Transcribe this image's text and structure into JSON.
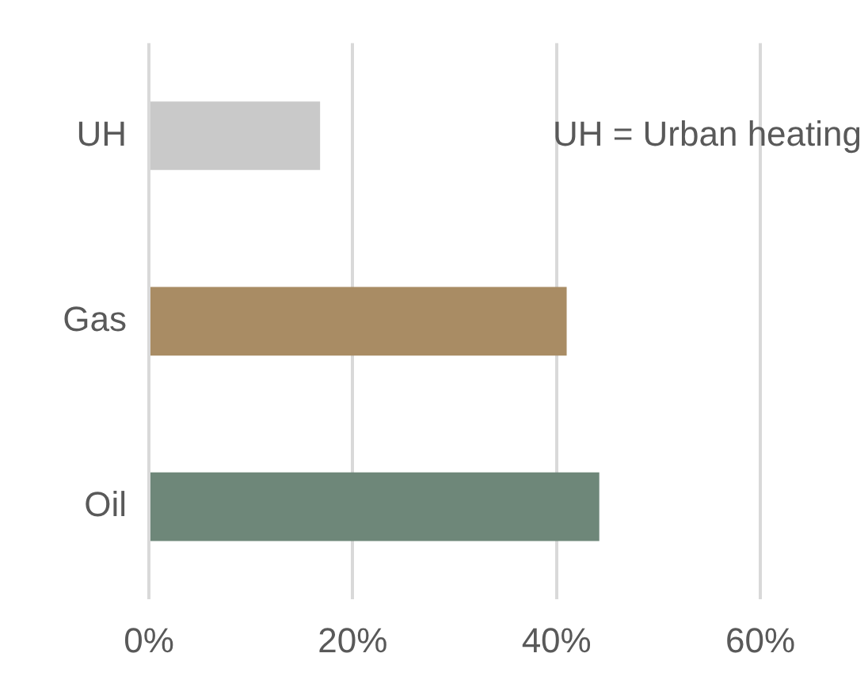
{
  "chart_data": {
    "type": "bar",
    "orientation": "horizontal",
    "categories": [
      "UH",
      "Gas",
      "Oil"
    ],
    "values": [
      16.8,
      41,
      44.2
    ],
    "colors": [
      "#c9c9c9",
      "#a98c64",
      "#6e8779"
    ],
    "xlim": [
      0,
      60
    ],
    "xticks": [
      {
        "value": 0,
        "label": "0%"
      },
      {
        "value": 20,
        "label": "20%"
      },
      {
        "value": 40,
        "label": "40%"
      },
      {
        "value": 60,
        "label": "60%"
      }
    ],
    "grid": "x",
    "legend": false,
    "annotations": [
      "UH = Urban heating"
    ]
  }
}
